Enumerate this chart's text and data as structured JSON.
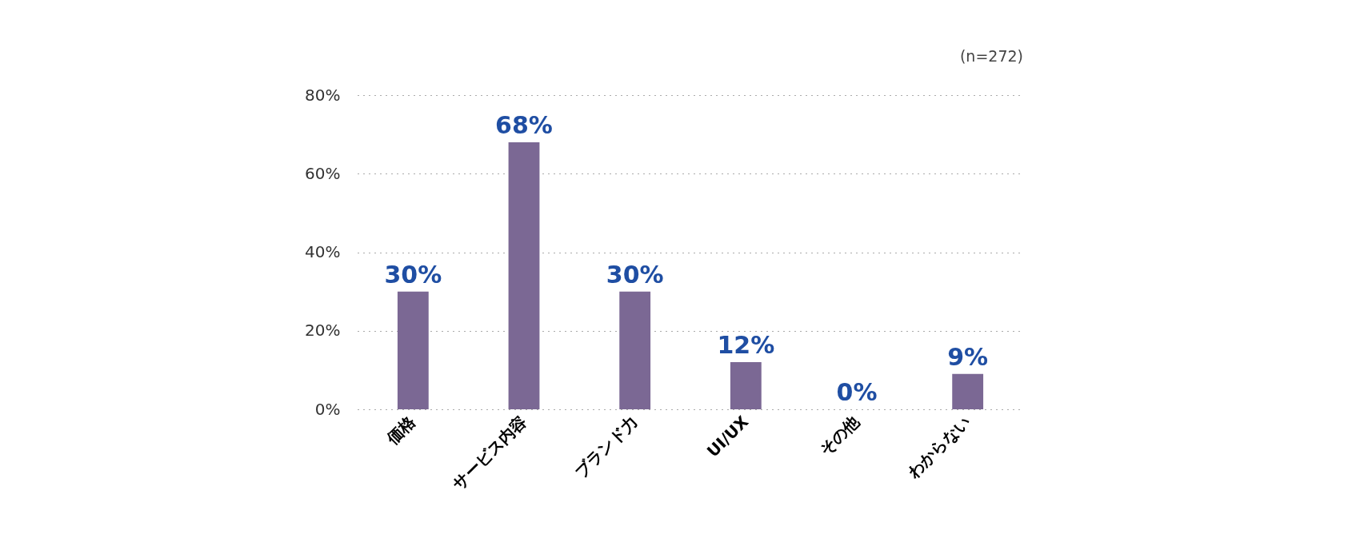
{
  "chart_data": {
    "type": "bar",
    "categories": [
      "価格",
      "サービス内容",
      "ブランド力",
      "UI/UX",
      "その他",
      "わからない"
    ],
    "values": [
      30,
      68,
      30,
      12,
      0,
      9
    ],
    "value_labels": [
      "30%",
      "68%",
      "30%",
      "12%",
      "0%",
      "9%"
    ],
    "color": "#7b6894",
    "ylim": [
      0,
      80
    ],
    "yticks": [
      {
        "value": 0,
        "label": "0%"
      },
      {
        "value": 20,
        "label": "20%"
      },
      {
        "value": 40,
        "label": "40%"
      },
      {
        "value": 60,
        "label": "60%"
      },
      {
        "value": 80,
        "label": "80%"
      }
    ],
    "grid": "y",
    "annotations": [
      "(n=272)"
    ]
  }
}
